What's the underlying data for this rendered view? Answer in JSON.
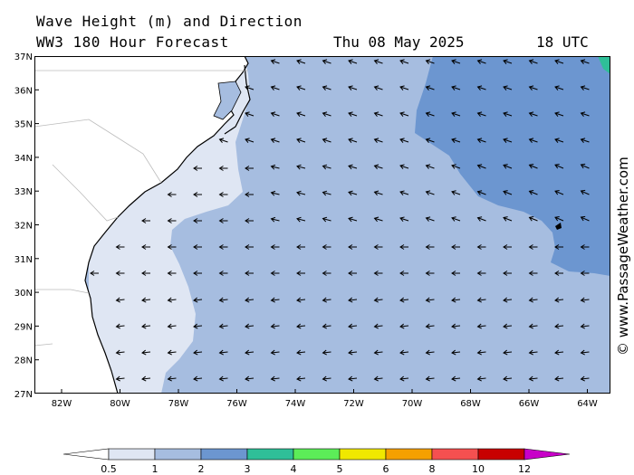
{
  "header": {
    "title_line1": "Wave Height (m) and Direction",
    "title_line2": "WW3 180 Hour Forecast",
    "date": "Thu 08 May 2025",
    "time": "18 UTC"
  },
  "credit": "© www.PassageWeather.com",
  "map": {
    "region": "US Southeast Atlantic coast",
    "lon_labels": [
      "82W",
      "80W",
      "78W",
      "76W",
      "74W",
      "72W",
      "70W",
      "68W",
      "66W",
      "64W"
    ],
    "lat_labels": [
      "37N",
      "36N",
      "35N",
      "34N",
      "33N",
      "32N",
      "31N",
      "30N",
      "29N",
      "28N",
      "27N"
    ],
    "lon_range": [
      -83,
      -63
    ],
    "lat_range": [
      27,
      37
    ],
    "dominant_wave_direction": "waves propagating toward the west (from the east)",
    "wave_zones": [
      {
        "label": "0.5–1 m",
        "where": "narrow coastal strip along Carolinas, Georgia and Florida"
      },
      {
        "label": "1–2 m",
        "where": "most of the offshore domain"
      },
      {
        "label": "2–3 m",
        "where": "north-east portion of the domain, east of about 69W and north of about 31N"
      },
      {
        "label": "3–4 m",
        "where": "small patch at the far north-east corner"
      }
    ]
  },
  "colorbar": {
    "tick_labels": [
      "0.5",
      "1",
      "2",
      "3",
      "4",
      "5",
      "6",
      "8",
      "10",
      "12"
    ],
    "colors": [
      "#dfe6f3",
      "#a6bde0",
      "#6c96d0",
      "#2fbf98",
      "#5ced58",
      "#f0e800",
      "#f5a000",
      "#f55050",
      "#c80000",
      "#c800c8"
    ]
  }
}
